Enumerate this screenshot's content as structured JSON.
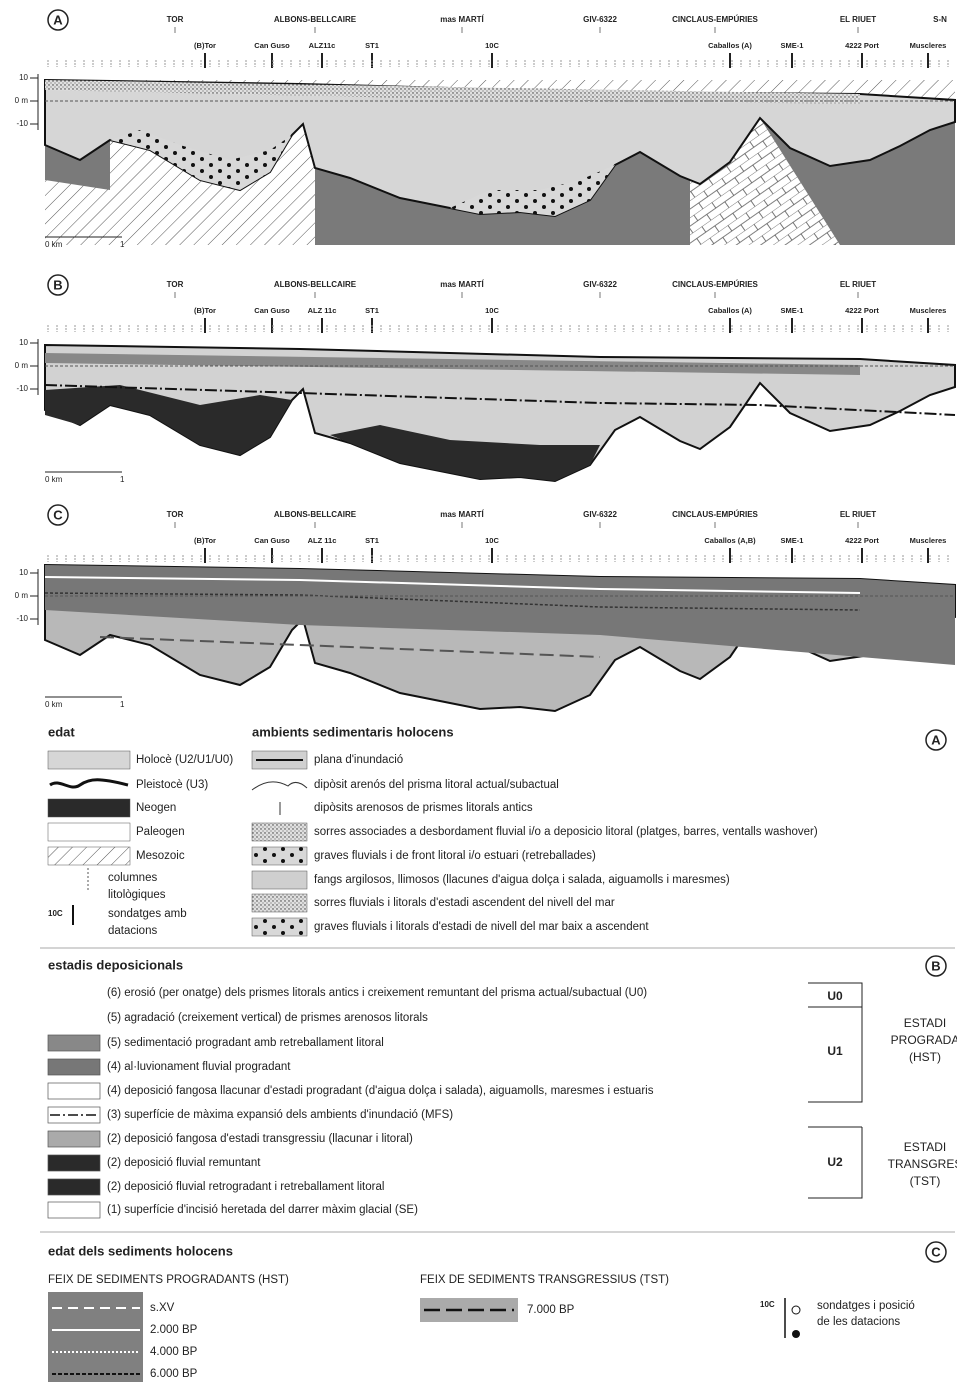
{
  "panels": [
    {
      "letter": "A",
      "sites": [
        "TOR",
        "ALBONS-BELLCAIRE",
        "mas MARTÍ",
        "GIV-6322",
        "CINCLAUS-EMPÚRIES",
        "EL RIUET",
        "S-N"
      ],
      "boreholes": [
        "(B)Tor",
        "Can Guso",
        "ALZ11c",
        "ST1",
        "10C",
        "Caballos (A)",
        "SME-1",
        "4222 Port",
        "Muscleres"
      ],
      "depth_labels": [
        "10",
        "0 m",
        "-10"
      ],
      "scale_labels": [
        "0 km",
        "1"
      ]
    },
    {
      "letter": "B",
      "sites": [
        "TOR",
        "ALBONS-BELLCAIRE",
        "mas MARTÍ",
        "GIV-6322",
        "CINCLAUS-EMPÚRIES",
        "EL RIUET"
      ],
      "boreholes": [
        "(B)Tor",
        "Can Guso",
        "ALZ 11c",
        "ST1",
        "10C",
        "Caballos (A)",
        "SME-1",
        "4222 Port",
        "Muscleres"
      ],
      "depth_labels": [
        "10",
        "0 m",
        "-10"
      ],
      "scale_labels": [
        "0 km",
        "1"
      ]
    },
    {
      "letter": "C",
      "sites": [
        "TOR",
        "ALBONS-BELLCAIRE",
        "mas MARTÍ",
        "GIV-6322",
        "CINCLAUS-EMPÚRIES",
        "EL RIUET"
      ],
      "boreholes": [
        "(B)Tor",
        "Can Guso",
        "ALZ 11c",
        "ST1",
        "10C",
        "Caballos (A,B)",
        "SME-1",
        "4222 Port",
        "Muscleres"
      ],
      "depth_labels": [
        "10",
        "0 m",
        "-10"
      ],
      "scale_labels": [
        "0 km",
        "1"
      ]
    }
  ],
  "legend_age": {
    "title": "edat",
    "items": [
      "Holocè (U2/U1/U0)",
      "Pleistocè (U3)",
      "Neogen",
      "Paleogen",
      "Mesozoic"
    ],
    "columns_label": [
      "columnes",
      "litològiques"
    ],
    "dating_code": "10C",
    "dating_label": [
      "sondatges amb",
      "datacions"
    ]
  },
  "legend_env": {
    "title": "ambients sedimentaris holocens",
    "letter": "A",
    "items": [
      "plana d'inundació",
      "dipòsit arenós del prisma litoral actual/subactual",
      "dipòsits arenosos de prismes litorals antics",
      "sorres associades a desbordament fluvial i/o a deposicio litoral (platges, barres, ventalls washover)",
      "graves fluvials i de front litoral i/o estuari (retreballades)",
      "fangs argilosos, llimosos (llacunes d'aigua dolça i salada, aiguamolls i maresmes)",
      "sorres fluvials i  litorals d'estadi ascendent del nivell del mar",
      "graves fluvials i litorals d'estadi de nivell del mar baix a ascendent"
    ]
  },
  "legend_stages": {
    "title": "estadis deposicionals",
    "letter": "B",
    "items": [
      "(6) erosió (per onatge) dels prismes litorals antics i creixement remuntant del prisma actual/subactual (U0)",
      "(5) agradació (creixement vertical) de prismes arenosos litorals",
      "(5) sedimentació progradant amb retreballament litoral",
      "(4) al·luvionament fluvial progradant",
      "(4) deposició fangosa llacunar d'estadi progradant (d'aigua dolça i salada), aiguamolls, maresmes i estuaris",
      "(3) superfície de màxima expansió dels ambients d'inundació (MFS)",
      "(2) deposició fangosa d'estadi transgressiu (llacunar i litoral)",
      "(2) deposició fluvial remuntant",
      "(2) deposició fluvial retrogradant i retreballament litoral",
      "(1) superfície d'incisió heretada del darrer màxim glacial (SE)"
    ],
    "units": [
      "U0",
      "U1",
      "U2"
    ],
    "hst": [
      "ESTADI",
      "PROGRADA",
      "(HST)"
    ],
    "tst": [
      "ESTADI",
      "TRANSGRES",
      "(TST)"
    ]
  },
  "legend_ages": {
    "title": "edat dels sediments holocens",
    "letter": "C",
    "hst_title": "FEIX DE SEDIMENTS PROGRADANTS (HST)",
    "hst_items": [
      "s.XV",
      "2.000 BP",
      "4.000 BP",
      "6.000 BP"
    ],
    "tst_title": "FEIX DE SEDIMENTS TRANSGRESSIUS (TST)",
    "tst_items": [
      "7.000 BP"
    ],
    "core_code": "10C",
    "core_label": [
      "sondatges i posició",
      "de les datacions"
    ]
  }
}
